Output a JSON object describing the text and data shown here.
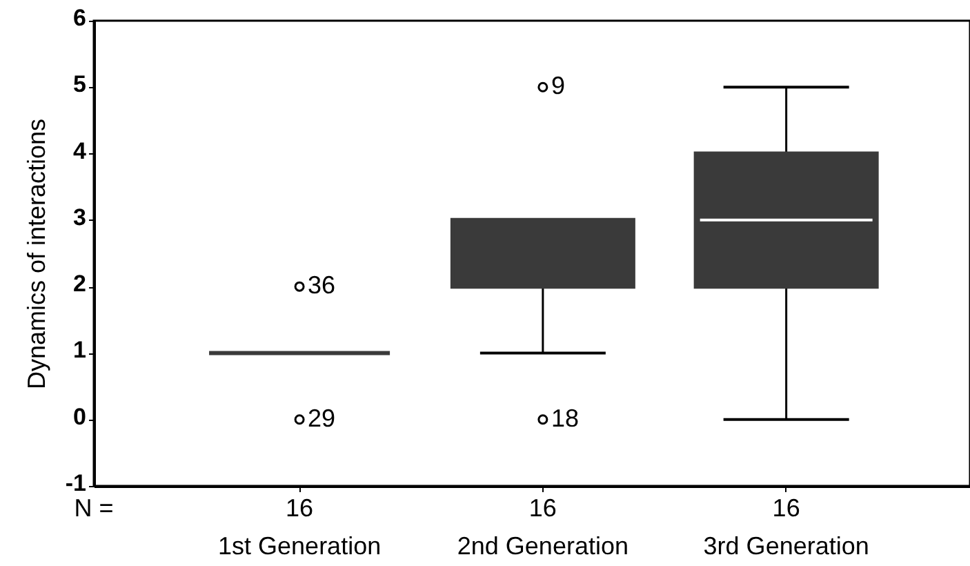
{
  "chart_data": {
    "type": "box",
    "ylabel": "Dynamics of interactions",
    "categories": [
      "1st Generation",
      "2nd Generation",
      "3rd Generation"
    ],
    "series": [
      {
        "type": "box",
        "color": "#3a3a3a",
        "boxes": [
          {
            "low": 1,
            "q1": 1,
            "median": 1,
            "q3": 1,
            "high": 1
          },
          {
            "low": 1,
            "q1": 2,
            "median": 2,
            "q3": 3,
            "high": 3
          },
          {
            "low": 0,
            "q1": 2,
            "median": 3,
            "q3": 4,
            "high": 5
          }
        ]
      },
      {
        "type": "scatter",
        "color": "#000000",
        "x": [
          "1st Generation",
          "1st Generation",
          "2nd Generation",
          "2nd Generation"
        ],
        "values": [
          2,
          0,
          5,
          0
        ]
      }
    ],
    "marker": "circle",
    "ylim": [
      -1,
      6
    ],
    "yticks": [
      -1,
      0,
      1,
      2,
      3,
      4,
      5,
      6
    ],
    "annotations": [
      "N =",
      "16",
      "16",
      "16",
      {
        "text": "36",
        "x": "1st Generation",
        "y": 2
      },
      {
        "text": "29",
        "x": "1st Generation",
        "y": 0
      },
      {
        "text": "9",
        "x": "2nd Generation",
        "y": 5
      },
      {
        "text": "18",
        "x": "2nd Generation",
        "y": 0
      }
    ]
  }
}
